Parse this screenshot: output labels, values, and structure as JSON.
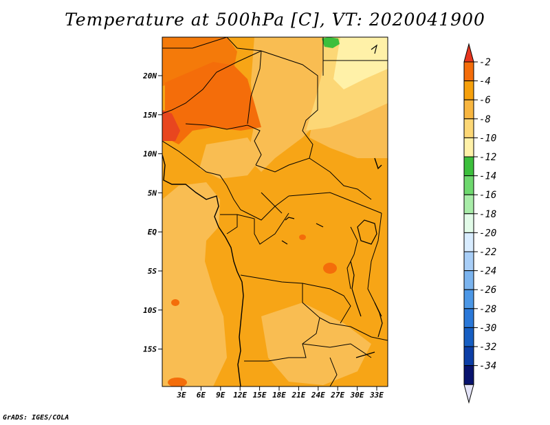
{
  "title": "Temperature at 500hPa [C], VT: 2020041900",
  "credit": "GrADS: IGES/COLA",
  "map": {
    "lat_ticks": [
      "20N",
      "15N",
      "10N",
      "5N",
      "EQ",
      "5S",
      "10S",
      "15S"
    ],
    "lon_ticks": [
      "3E",
      "6E",
      "9E",
      "12E",
      "15E",
      "18E",
      "21E",
      "24E",
      "27E",
      "30E",
      "33E"
    ]
  },
  "colorbar": {
    "labels": [
      "-2",
      "-4",
      "-6",
      "-8",
      "-10",
      "-12",
      "-14",
      "-16",
      "-18",
      "-20",
      "-22",
      "-24",
      "-26",
      "-28",
      "-30",
      "-32",
      "-34"
    ],
    "colors": [
      "#e8361f",
      "#f46d0a",
      "#f6a00c",
      "#f8b640",
      "#fcd776",
      "#fff1a8",
      "#3cbf3c",
      "#6ed86e",
      "#a8eca8",
      "#e2fbe8",
      "#d8ecff",
      "#a8cef7",
      "#7bb4ef",
      "#4c97e6",
      "#2a78d8",
      "#165ec2",
      "#0c3ea6",
      "#08136e",
      "#e4e4f8"
    ]
  }
}
